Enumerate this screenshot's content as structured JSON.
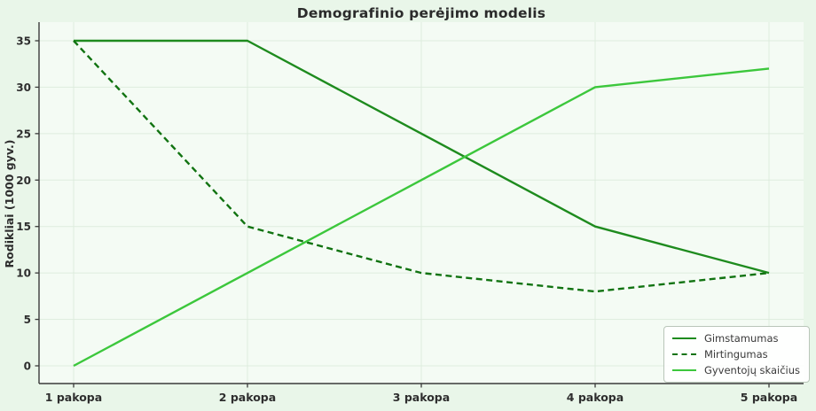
{
  "chart_data": {
    "type": "line",
    "title": "Demografinio perėjimo modelis",
    "ylabel": "Rodikliai (1000 gyv.)",
    "xlabel": "",
    "categories": [
      "1 pakopa",
      "2 pakopa",
      "3 pakopa",
      "4 pakopa",
      "5 pakopa"
    ],
    "series": [
      {
        "name": "Gimstamumas",
        "values": [
          35,
          35,
          25,
          15,
          10
        ],
        "color": "#1e8b1e",
        "style": "solid"
      },
      {
        "name": "Mirtingumas",
        "values": [
          35,
          15,
          10,
          8,
          10
        ],
        "color": "#117311",
        "style": "dashed"
      },
      {
        "name": "Gyventojų skaičius",
        "values": [
          0,
          10,
          20,
          30,
          32
        ],
        "color": "#3cc73c",
        "style": "solid"
      }
    ],
    "yticks": [
      0,
      5,
      10,
      15,
      20,
      25,
      30,
      35
    ],
    "ylim": [
      -1.75,
      36.75
    ],
    "grid": true,
    "legend_position": "lower right",
    "colors": {
      "figure_background": "#e9f6e9",
      "plot_background": "#f4fbf4",
      "gridline": "#dcebdc",
      "spine": "#3a3a3a",
      "tick_label": "#2e2e2e",
      "title": "#2b2b2b",
      "legend_border": "#b9c6b9"
    }
  }
}
